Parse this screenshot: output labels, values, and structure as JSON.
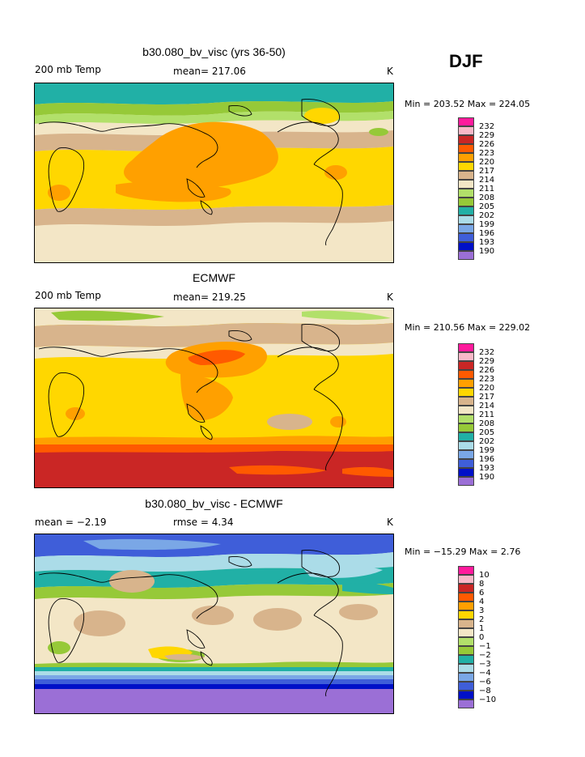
{
  "season": "DJF",
  "palette": [
    "#9b6fd6",
    "#0010c8",
    "#3f5ed9",
    "#7aa7e6",
    "#abdce8",
    "#21b0a6",
    "#96c938",
    "#b2e06a",
    "#f3e6c6",
    "#d8b48c",
    "#ffd700",
    "#ffa000",
    "#ff5a00",
    "#ca2625",
    "#f8b8c8",
    "#ff1a9c"
  ],
  "panels": [
    {
      "title": "b30.080_bv_visc (yrs 36-50)",
      "left_label": "200 mb Temp",
      "mid_label": "mean= 217.06",
      "unit": "K",
      "minmax": "Min = 203.52  Max = 224.05",
      "levels": [
        "232",
        "229",
        "226",
        "223",
        "220",
        "217",
        "214",
        "211",
        "208",
        "205",
        "202",
        "199",
        "196",
        "193",
        "190"
      ]
    },
    {
      "title": "ECMWF",
      "left_label": "200 mb Temp",
      "mid_label": "mean= 219.25",
      "unit": "K",
      "minmax": "Min = 210.56  Max = 229.02",
      "levels": [
        "232",
        "229",
        "226",
        "223",
        "220",
        "217",
        "214",
        "211",
        "208",
        "205",
        "202",
        "199",
        "196",
        "193",
        "190"
      ]
    },
    {
      "title": "b30.080_bv_visc - ECMWF",
      "left_label": "mean =   −2.19",
      "mid_label": "rmse =    4.34",
      "unit": "K",
      "minmax": "Min = −15.29  Max =    2.76",
      "levels": [
        "10",
        "8",
        "6",
        "4",
        "3",
        "2",
        "1",
        "0",
        "−1",
        "−2",
        "−3",
        "−4",
        "−6",
        "−8",
        "−10"
      ]
    }
  ]
}
